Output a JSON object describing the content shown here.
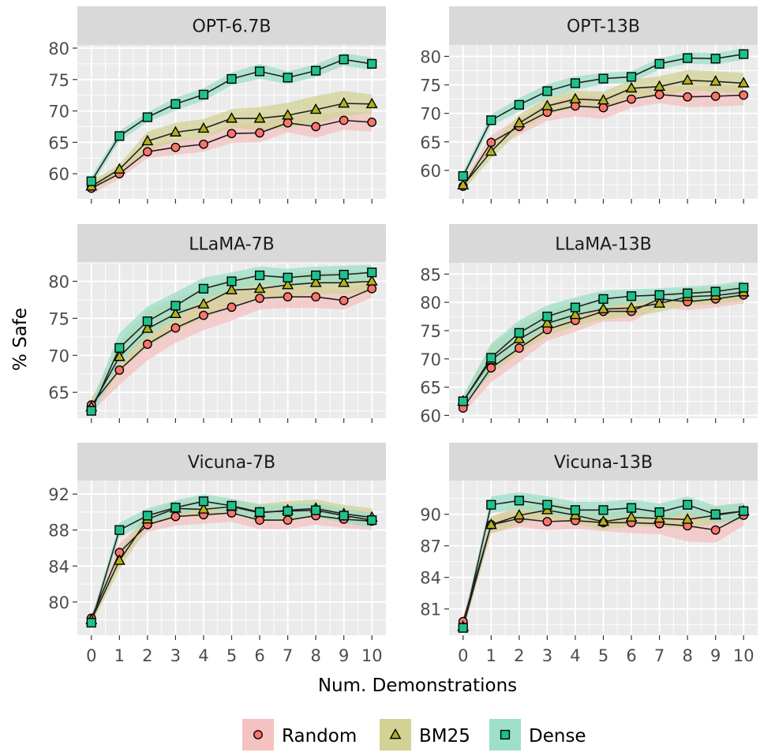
{
  "chart_data": {
    "type": "line",
    "ylabel": "% Safe",
    "xlabel": "Num. Demonstrations",
    "x": [
      0,
      1,
      2,
      3,
      4,
      5,
      6,
      7,
      8,
      9,
      10
    ],
    "legend": {
      "placement": "bottom",
      "entries": [
        {
          "name": "Random",
          "marker": "circle",
          "fill": "#F8766D",
          "band": "#F4C2C0"
        },
        {
          "name": "BM25",
          "marker": "triangle",
          "fill": "#B2B21D",
          "band": "#D2D295"
        },
        {
          "name": "Dense",
          "marker": "square",
          "fill": "#1FC08C",
          "band": "#9EDFC8"
        }
      ]
    },
    "colors": {
      "panel_bg": "#EBEBEB",
      "strip_bg": "#D9D9D9",
      "grid": "#FFFFFF",
      "line": "#222222"
    },
    "grid": true,
    "panels": [
      {
        "title": "OPT-6.7B",
        "ylim": [
          56,
          80.5
        ],
        "yticks": [
          60,
          65,
          70,
          75,
          80
        ],
        "series": [
          {
            "name": "Random",
            "values": [
              57.7,
              60.0,
              63.5,
              64.2,
              64.7,
              66.4,
              66.5,
              68.1,
              67.5,
              68.5,
              68.2
            ],
            "band": [
              1.0,
              0.8,
              1.0,
              1.2,
              1.2,
              1.5,
              1.5,
              1.5,
              1.8,
              1.5,
              1.5
            ]
          },
          {
            "name": "BM25",
            "values": [
              58.0,
              60.7,
              65.2,
              66.6,
              67.2,
              68.8,
              68.8,
              69.3,
              70.2,
              71.2,
              71.1
            ],
            "band": [
              0.8,
              0.8,
              1.5,
              1.5,
              1.5,
              1.5,
              1.8,
              2.0,
              2.2,
              2.0,
              1.5
            ]
          },
          {
            "name": "Dense",
            "values": [
              58.8,
              66.0,
              69.0,
              71.1,
              72.6,
              75.1,
              76.3,
              75.3,
              76.4,
              78.2,
              77.5
            ],
            "band": [
              0.8,
              0.8,
              0.8,
              1.0,
              1.0,
              1.0,
              1.2,
              1.0,
              1.0,
              1.0,
              1.0
            ]
          }
        ]
      },
      {
        "title": "OPT-13B",
        "ylim": [
          55,
          82
        ],
        "yticks": [
          60,
          65,
          70,
          75,
          80
        ],
        "series": [
          {
            "name": "Random",
            "values": [
              57.2,
              64.9,
              67.7,
              70.2,
              71.3,
              71.0,
              72.5,
              73.3,
              72.9,
              73.0,
              73.2
            ],
            "band": [
              1.0,
              1.2,
              1.5,
              1.5,
              1.8,
              2.0,
              1.5,
              1.5,
              1.8,
              1.8,
              1.8
            ]
          },
          {
            "name": "BM25",
            "values": [
              57.4,
              63.3,
              68.3,
              71.3,
              72.5,
              72.3,
              74.4,
              74.7,
              75.8,
              75.6,
              75.3
            ],
            "band": [
              1.0,
              1.2,
              1.5,
              1.5,
              1.5,
              1.5,
              1.5,
              1.8,
              1.8,
              1.8,
              1.8
            ]
          },
          {
            "name": "Dense",
            "values": [
              59.0,
              68.8,
              71.5,
              73.9,
              75.3,
              76.1,
              76.4,
              78.7,
              79.7,
              79.6,
              80.4
            ],
            "band": [
              0.8,
              1.0,
              1.2,
              1.2,
              1.2,
              1.0,
              1.0,
              1.0,
              1.0,
              1.0,
              1.0
            ]
          }
        ]
      },
      {
        "title": "LLaMA-7B",
        "ylim": [
          61.5,
          82.5
        ],
        "yticks": [
          65,
          70,
          75,
          80
        ],
        "series": [
          {
            "name": "Random",
            "values": [
              63.3,
              68.0,
              71.5,
              73.7,
              75.4,
              76.5,
              77.7,
              77.9,
              77.9,
              77.4,
              79.0
            ],
            "band": [
              1.0,
              2.0,
              2.2,
              2.0,
              2.0,
              1.8,
              1.5,
              1.5,
              1.5,
              1.2,
              1.2
            ]
          },
          {
            "name": "BM25",
            "values": [
              63.0,
              69.8,
              73.6,
              75.6,
              76.9,
              78.8,
              79.0,
              79.5,
              79.8,
              79.8,
              80.0
            ],
            "band": [
              1.0,
              2.0,
              2.5,
              2.2,
              2.0,
              1.8,
              1.5,
              1.5,
              1.5,
              1.5,
              1.5
            ]
          },
          {
            "name": "Dense",
            "values": [
              62.5,
              71.0,
              74.6,
              76.7,
              79.0,
              80.0,
              80.8,
              80.5,
              80.8,
              80.9,
              81.2
            ],
            "band": [
              1.0,
              2.0,
              2.0,
              1.8,
              1.5,
              1.2,
              1.2,
              1.2,
              1.2,
              1.2,
              1.0
            ]
          }
        ]
      },
      {
        "title": "LLaMA-13B",
        "ylim": [
          59.5,
          87
        ],
        "yticks": [
          60,
          65,
          70,
          75,
          80,
          85
        ],
        "series": [
          {
            "name": "Random",
            "values": [
              61.3,
              68.4,
              71.9,
              75.2,
              76.8,
              78.4,
              78.4,
              80.6,
              80.1,
              80.6,
              81.3
            ],
            "band": [
              1.0,
              2.5,
              2.5,
              2.0,
              2.0,
              1.8,
              1.8,
              1.5,
              1.5,
              1.5,
              1.5
            ]
          },
          {
            "name": "BM25",
            "values": [
              62.5,
              69.8,
              73.5,
              76.3,
              77.8,
              78.8,
              79.0,
              79.8,
              81.0,
              81.2,
              81.8
            ],
            "band": [
              1.0,
              2.5,
              2.5,
              2.2,
              2.0,
              1.8,
              1.5,
              1.5,
              1.5,
              1.5,
              1.5
            ]
          },
          {
            "name": "Dense",
            "values": [
              62.5,
              70.2,
              74.6,
              77.5,
              79.1,
              80.6,
              81.1,
              81.3,
              81.6,
              81.9,
              82.6
            ],
            "band": [
              1.0,
              2.5,
              2.2,
              2.0,
              1.8,
              1.5,
              1.2,
              1.2,
              1.2,
              1.2,
              1.2
            ]
          }
        ]
      },
      {
        "title": "Vicuna-7B",
        "ylim": [
          76.3,
          93.5
        ],
        "yticks": [
          80,
          84,
          88,
          92
        ],
        "series": [
          {
            "name": "Random",
            "values": [
              78.2,
              85.5,
              88.6,
              89.5,
              89.7,
              89.9,
              89.1,
              89.1,
              89.6,
              89.2,
              89.0
            ],
            "band": [
              0.5,
              1.0,
              0.8,
              1.0,
              1.0,
              1.0,
              1.0,
              1.0,
              1.0,
              1.0,
              1.0
            ]
          },
          {
            "name": "BM25",
            "values": [
              78.0,
              84.6,
              89.2,
              90.4,
              90.3,
              90.6,
              89.9,
              90.2,
              90.4,
              89.8,
              89.4
            ],
            "band": [
              0.5,
              1.0,
              0.8,
              0.8,
              0.8,
              0.8,
              1.0,
              1.0,
              1.0,
              1.0,
              1.0
            ]
          },
          {
            "name": "Dense",
            "values": [
              77.7,
              88.0,
              89.6,
              90.5,
              91.2,
              90.7,
              90.0,
              90.1,
              90.2,
              89.6,
              89.1
            ],
            "band": [
              0.5,
              0.8,
              0.8,
              0.8,
              0.8,
              0.8,
              0.8,
              0.8,
              0.8,
              0.8,
              0.8
            ]
          }
        ]
      },
      {
        "title": "Vicuna-13B",
        "ylim": [
          78.5,
          93.2
        ],
        "yticks": [
          81,
          84,
          87,
          90
        ],
        "series": [
          {
            "name": "Random",
            "values": [
              79.8,
              89.0,
              89.6,
              89.3,
              89.4,
              89.2,
              89.2,
              89.1,
              88.9,
              88.5,
              89.9
            ],
            "band": [
              0.5,
              0.8,
              0.8,
              0.8,
              0.8,
              0.8,
              1.0,
              1.0,
              1.5,
              1.2,
              1.0
            ]
          },
          {
            "name": "BM25",
            "values": [
              79.3,
              89.0,
              89.9,
              90.4,
              89.9,
              89.3,
              89.7,
              89.6,
              89.5,
              89.9,
              90.3
            ],
            "band": [
              0.5,
              0.8,
              0.8,
              0.8,
              0.8,
              0.8,
              0.8,
              0.8,
              0.8,
              0.8,
              0.8
            ]
          },
          {
            "name": "Dense",
            "values": [
              79.2,
              90.9,
              91.3,
              90.9,
              90.4,
              90.4,
              90.6,
              90.2,
              90.9,
              90.0,
              90.3
            ],
            "band": [
              0.5,
              0.8,
              0.8,
              0.8,
              0.8,
              0.8,
              0.8,
              0.8,
              0.8,
              0.8,
              0.8
            ]
          }
        ]
      }
    ]
  }
}
